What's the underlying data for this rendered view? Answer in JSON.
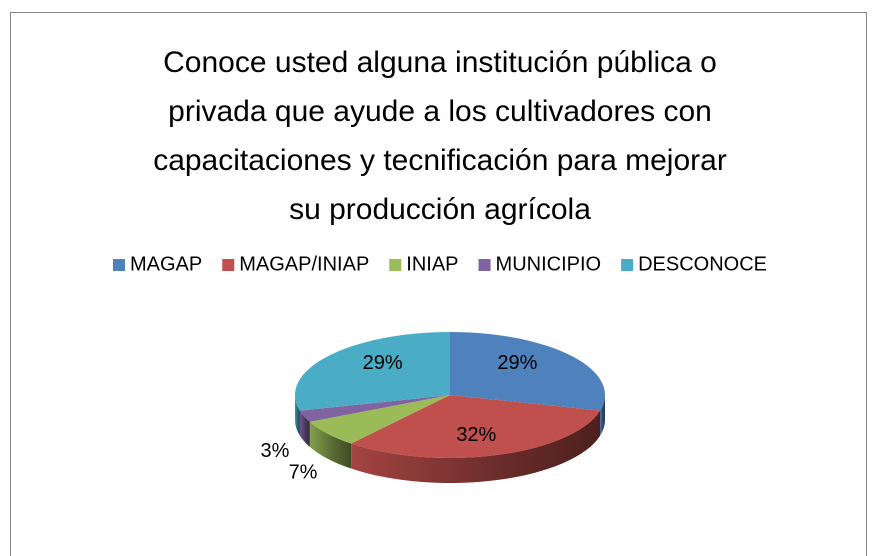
{
  "chart_data": {
    "type": "pie3d",
    "title": "Conoce usted alguna institución pública o privada que ayude a los cultivadores con capacitaciones y tecnificación para mejorar su producción agrícola",
    "categories": [
      "MAGAP",
      "MAGAP/INIAP",
      "INIAP",
      "MUNICIPIO",
      "DESCONOCE"
    ],
    "values": [
      29,
      32,
      7,
      3,
      29
    ],
    "value_labels": [
      "29%",
      "32%",
      "7%",
      "3%",
      "29%"
    ],
    "colors": [
      "#4f81bd",
      "#c0504d",
      "#9bbb59",
      "#8064a2",
      "#4bacc6"
    ],
    "legend": "top"
  }
}
